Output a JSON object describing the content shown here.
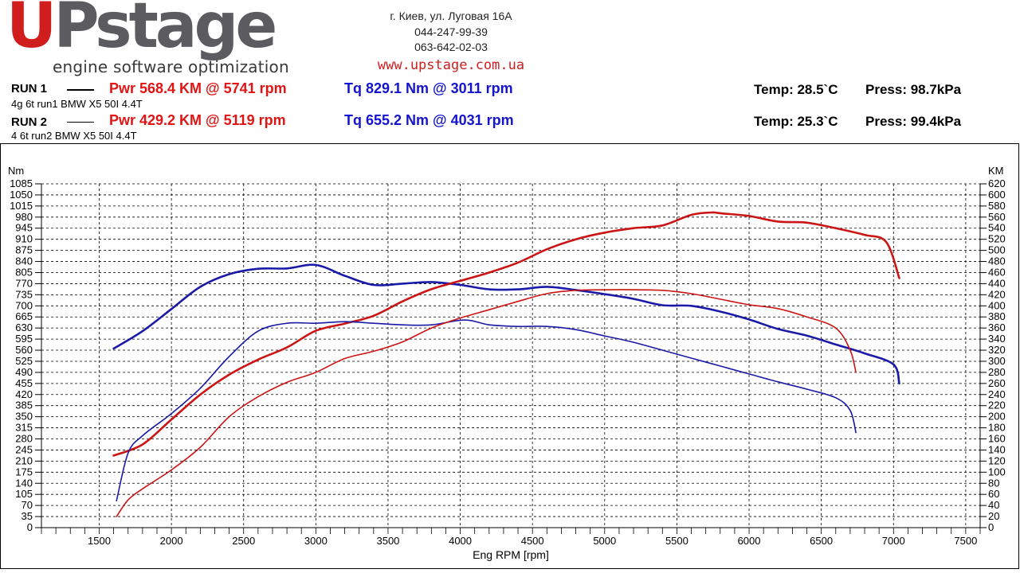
{
  "header": {
    "logo_u": "U",
    "logo_rest": "Pstage",
    "logo_tagline": "engine software optimization",
    "address": "г. Киев, ул. Луговая 16А",
    "phone1": "044-247-99-39",
    "phone2": "063-642-02-03",
    "website": "www.upstage.com.ua"
  },
  "runs": [
    {
      "label": "RUN 1",
      "desc": "4g 6t run1 BMW X5 50I 4.4T",
      "pwr": "Pwr  568.4 KM @ 5741 rpm",
      "tq": "Tq 829.1 Nm @ 3011 rpm",
      "temp": "Temp: 28.5`C",
      "press": "Press: 98.7kPa"
    },
    {
      "label": "RUN 2",
      "desc": "4 6t run2 BMW X5 50I 4.4T",
      "pwr": "Pwr  429.2 KM @ 5119 rpm",
      "tq": "Tq 655.2 Nm @ 4031 rpm",
      "temp": "Temp: 25.3`C",
      "press": "Press: 99.4kPa"
    }
  ],
  "colors": {
    "power": "#cc1414",
    "torque": "#1a1aa8",
    "grid": "#000000"
  },
  "chart_data": {
    "type": "line",
    "xlabel": "Eng RPM [rpm]",
    "ylabel_left": "Nm",
    "ylabel_right": "KM",
    "xlim": [
      1100,
      7600
    ],
    "ylim_left": [
      0,
      1085
    ],
    "ylim_right": [
      0,
      620
    ],
    "x_ticks": [
      1500,
      2000,
      2500,
      3000,
      3500,
      4000,
      4500,
      5000,
      5500,
      6000,
      6500,
      7000,
      7500
    ],
    "y_ticks_left": [
      0,
      35,
      70,
      105,
      140,
      175,
      210,
      245,
      280,
      315,
      350,
      385,
      420,
      455,
      490,
      525,
      560,
      595,
      630,
      665,
      700,
      735,
      770,
      805,
      840,
      875,
      910,
      945,
      980,
      1015,
      1050,
      1085
    ],
    "y_ticks_right": [
      0,
      20,
      40,
      60,
      80,
      100,
      120,
      140,
      160,
      180,
      200,
      220,
      240,
      260,
      280,
      300,
      320,
      340,
      360,
      380,
      400,
      420,
      440,
      460,
      480,
      500,
      520,
      540,
      560,
      580,
      600,
      620
    ],
    "grid": true,
    "series": [
      {
        "name": "RUN 1",
        "quantity": "torque",
        "axis": "left",
        "unit": "Nm",
        "x": [
          1600,
          1800,
          2000,
          2200,
          2400,
          2600,
          2800,
          3000,
          3200,
          3400,
          3600,
          3800,
          4000,
          4200,
          4400,
          4600,
          4800,
          5000,
          5200,
          5400,
          5600,
          5800,
          6000,
          6200,
          6400,
          6600,
          6800,
          7000,
          7040
        ],
        "y": [
          565,
          620,
          690,
          760,
          800,
          817,
          818,
          829,
          795,
          766,
          770,
          775,
          766,
          752,
          752,
          760,
          750,
          737,
          722,
          702,
          700,
          682,
          657,
          627,
          606,
          578,
          550,
          515,
          455
        ]
      },
      {
        "name": "RUN 1",
        "quantity": "power",
        "axis": "right",
        "unit": "KM",
        "x": [
          1600,
          1800,
          2000,
          2200,
          2400,
          2600,
          2800,
          3000,
          3200,
          3400,
          3600,
          3800,
          4000,
          4200,
          4400,
          4600,
          4800,
          5000,
          5200,
          5400,
          5600,
          5741,
          5800,
          6000,
          6200,
          6400,
          6600,
          6800,
          6950,
          7040
        ],
        "y": [
          130,
          150,
          195,
          240,
          276,
          303,
          325,
          355,
          368,
          382,
          408,
          430,
          445,
          460,
          478,
          502,
          520,
          532,
          540,
          545,
          564,
          568.4,
          567,
          562,
          552,
          550,
          540,
          528,
          515,
          450
        ]
      },
      {
        "name": "RUN 2",
        "quantity": "torque",
        "axis": "left",
        "unit": "Nm",
        "x": [
          1620,
          1700,
          1800,
          2000,
          2200,
          2400,
          2600,
          2800,
          3000,
          3200,
          3400,
          3600,
          3800,
          4031,
          4200,
          4400,
          4600,
          4800,
          5000,
          5200,
          5400,
          5600,
          5800,
          6000,
          6200,
          6400,
          6600,
          6700,
          6740
        ],
        "y": [
          85,
          235,
          290,
          360,
          440,
          540,
          620,
          645,
          645,
          650,
          645,
          640,
          640,
          655.2,
          640,
          635,
          635,
          625,
          605,
          585,
          560,
          535,
          510,
          485,
          460,
          437,
          410,
          370,
          300
        ]
      },
      {
        "name": "RUN 2",
        "quantity": "power",
        "axis": "right",
        "unit": "KM",
        "x": [
          1620,
          1700,
          1800,
          2000,
          2200,
          2400,
          2600,
          2800,
          3000,
          3200,
          3400,
          3600,
          3800,
          4000,
          4200,
          4400,
          4600,
          4800,
          5000,
          5119,
          5200,
          5400,
          5600,
          5800,
          6000,
          6200,
          6400,
          6600,
          6700,
          6740
        ],
        "y": [
          20,
          50,
          70,
          104,
          145,
          200,
          236,
          262,
          280,
          305,
          318,
          335,
          360,
          378,
          393,
          408,
          422,
          428,
          429,
          429.2,
          429,
          428,
          422,
          412,
          402,
          395,
          380,
          360,
          320,
          280
        ]
      }
    ]
  }
}
